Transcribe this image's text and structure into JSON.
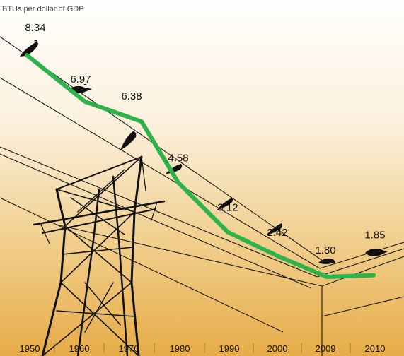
{
  "chart_data": {
    "type": "line",
    "title": "",
    "ylabel": "BTUs per dollar of GDP",
    "xlabel": "",
    "categories": [
      "1950",
      "1960",
      "1970",
      "1980",
      "1990",
      "2000",
      "2009",
      "2010"
    ],
    "values": [
      8.34,
      6.97,
      6.38,
      4.58,
      3.12,
      2.42,
      1.8,
      1.85
    ],
    "data_labels": [
      "8.34",
      "6.97",
      "6.38",
      "4.58",
      "3.12",
      "2.42",
      "1.80",
      "1.85"
    ],
    "series_color": "#2db34a",
    "background_top": "#ffffff",
    "background_bottom": "#e7b04e",
    "grid": false,
    "legend": "none"
  }
}
